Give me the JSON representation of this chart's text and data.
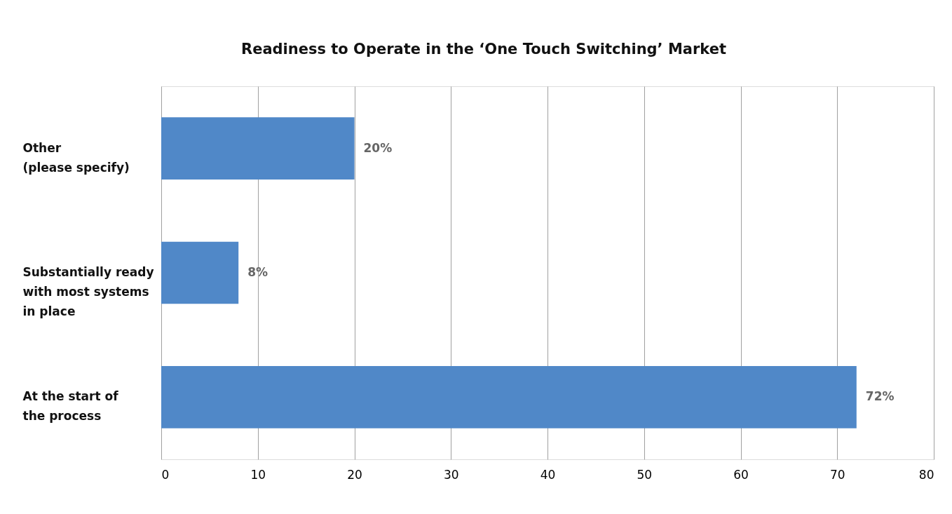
{
  "chart_data": {
    "type": "bar",
    "orientation": "horizontal",
    "title": "Readiness to Operate in the ‘One Touch Switching’ Market",
    "categories": [
      "Other\n(please specify)",
      "Substantially ready\nwith most systems\nin place",
      "At the start of\nthe process"
    ],
    "values": [
      20,
      8,
      72
    ],
    "color": "#5088c8",
    "value_labels": [
      "20%",
      "8%",
      "72%"
    ],
    "xlim": [
      0,
      80
    ],
    "xticks": [
      0,
      10,
      20,
      30,
      40,
      50,
      60,
      70,
      80
    ],
    "grid": "x"
  }
}
